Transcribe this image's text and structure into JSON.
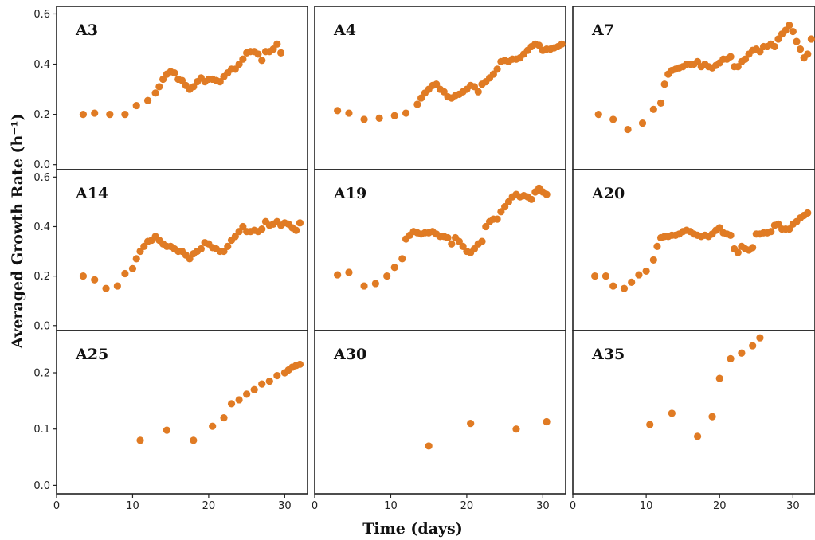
{
  "chart_data": {
    "type": "scatter",
    "xlabel": "Time (days)",
    "ylabel": "Averaged Growth Rate (h⁻¹)",
    "xlim": [
      0,
      33
    ],
    "x_ticks": [
      "0",
      "10",
      "20",
      "30"
    ],
    "color": "#e07b24",
    "rows": [
      {
        "ylim": [
          -0.02,
          0.63
        ],
        "y_ticks": [
          "0.0",
          "0.2",
          "0.4",
          "0.6"
        ]
      },
      {
        "ylim": [
          -0.02,
          0.63
        ],
        "y_ticks": [
          "0.0",
          "0.2",
          "0.4",
          "0.6"
        ]
      },
      {
        "ylim": [
          -0.015,
          0.275
        ],
        "y_ticks": [
          "0.0",
          "0.1",
          "0.2"
        ]
      }
    ],
    "panels": [
      {
        "label": "A3",
        "row": 0,
        "col": 0,
        "x": [
          3.5,
          5,
          7,
          9,
          10.5,
          12,
          13,
          13.5,
          14,
          14.5,
          15,
          15.5,
          16,
          16.5,
          17,
          17.5,
          18,
          18.5,
          19,
          19.5,
          20,
          20.5,
          21,
          21.5,
          22,
          22.5,
          23,
          23.5,
          24,
          24.5,
          25,
          25.5,
          26,
          26.5,
          27,
          27.5,
          28,
          28.5,
          29,
          29.5
        ],
        "y": [
          0.2,
          0.205,
          0.2,
          0.2,
          0.235,
          0.255,
          0.285,
          0.31,
          0.34,
          0.36,
          0.37,
          0.365,
          0.34,
          0.335,
          0.315,
          0.3,
          0.31,
          0.33,
          0.345,
          0.33,
          0.34,
          0.34,
          0.335,
          0.33,
          0.35,
          0.365,
          0.38,
          0.38,
          0.4,
          0.42,
          0.445,
          0.45,
          0.45,
          0.44,
          0.415,
          0.45,
          0.45,
          0.46,
          0.48,
          0.445
        ]
      },
      {
        "label": "A4",
        "row": 0,
        "col": 1,
        "x": [
          3,
          4.5,
          6.5,
          8.5,
          10.5,
          12,
          13.5,
          14,
          14.5,
          15,
          15.5,
          16,
          16.5,
          17,
          17.5,
          18,
          18.5,
          19,
          19.5,
          20,
          20.5,
          21,
          21.5,
          22,
          22.5,
          23,
          23.5,
          24,
          24.5,
          25,
          25.5,
          26,
          26.5,
          27,
          27.5,
          28,
          28.5,
          29,
          29.5,
          30,
          30.5,
          31,
          31.5,
          32,
          32.5
        ],
        "y": [
          0.215,
          0.205,
          0.18,
          0.185,
          0.195,
          0.205,
          0.24,
          0.265,
          0.285,
          0.3,
          0.315,
          0.32,
          0.3,
          0.29,
          0.27,
          0.265,
          0.275,
          0.28,
          0.29,
          0.3,
          0.315,
          0.31,
          0.29,
          0.32,
          0.33,
          0.345,
          0.36,
          0.38,
          0.41,
          0.415,
          0.41,
          0.42,
          0.42,
          0.425,
          0.44,
          0.455,
          0.47,
          0.48,
          0.475,
          0.455,
          0.46,
          0.46,
          0.465,
          0.47,
          0.48
        ]
      },
      {
        "label": "A7",
        "row": 0,
        "col": 2,
        "x": [
          3.5,
          5.5,
          7.5,
          9.5,
          11,
          12,
          12.5,
          13,
          13.5,
          14,
          14.5,
          15,
          15.5,
          16,
          16.5,
          17,
          17.5,
          18,
          18.5,
          19,
          19.5,
          20,
          20.5,
          21,
          21.5,
          22,
          22.5,
          23,
          23.5,
          24,
          24.5,
          25,
          25.5,
          26,
          26.5,
          27,
          27.5,
          28,
          28.5,
          29,
          29.5,
          30,
          30.5,
          31,
          31.5,
          32,
          32.5
        ],
        "y": [
          0.2,
          0.18,
          0.14,
          0.165,
          0.22,
          0.245,
          0.32,
          0.36,
          0.375,
          0.38,
          0.385,
          0.39,
          0.4,
          0.4,
          0.4,
          0.41,
          0.39,
          0.4,
          0.39,
          0.385,
          0.395,
          0.405,
          0.42,
          0.42,
          0.43,
          0.39,
          0.39,
          0.41,
          0.42,
          0.44,
          0.455,
          0.46,
          0.45,
          0.47,
          0.47,
          0.48,
          0.47,
          0.5,
          0.52,
          0.535,
          0.555,
          0.53,
          0.49,
          0.46,
          0.425,
          0.44,
          0.5
        ]
      },
      {
        "label": "A14",
        "row": 1,
        "col": 0,
        "x": [
          3.5,
          5,
          6.5,
          8,
          9,
          10,
          10.5,
          11,
          11.5,
          12,
          12.5,
          13,
          13.5,
          14,
          14.5,
          15,
          15.5,
          16,
          16.5,
          17,
          17.5,
          18,
          18.5,
          19,
          19.5,
          20,
          20.5,
          21,
          21.5,
          22,
          22.5,
          23,
          23.5,
          24,
          24.5,
          25,
          25.5,
          26,
          26.5,
          27,
          27.5,
          28,
          28.5,
          29,
          29.5,
          30,
          30.5,
          31,
          31.5,
          32
        ],
        "y": [
          0.2,
          0.185,
          0.15,
          0.16,
          0.21,
          0.23,
          0.27,
          0.3,
          0.32,
          0.34,
          0.345,
          0.36,
          0.345,
          0.33,
          0.32,
          0.32,
          0.31,
          0.3,
          0.3,
          0.285,
          0.27,
          0.29,
          0.3,
          0.31,
          0.335,
          0.33,
          0.315,
          0.31,
          0.3,
          0.3,
          0.32,
          0.345,
          0.36,
          0.38,
          0.4,
          0.38,
          0.38,
          0.385,
          0.38,
          0.39,
          0.42,
          0.405,
          0.41,
          0.42,
          0.405,
          0.415,
          0.41,
          0.395,
          0.385,
          0.415
        ]
      },
      {
        "label": "A19",
        "row": 1,
        "col": 1,
        "x": [
          3,
          4.5,
          6.5,
          8,
          9.5,
          10.5,
          11.5,
          12,
          12.5,
          13,
          13.5,
          14,
          14.5,
          15,
          15.5,
          16,
          16.5,
          17,
          17.5,
          18,
          18.5,
          19,
          19.5,
          20,
          20.5,
          21,
          21.5,
          22,
          22.5,
          23,
          23.5,
          24,
          24.5,
          25,
          25.5,
          26,
          26.5,
          27,
          27.5,
          28,
          28.5,
          29,
          29.5,
          30,
          30.5
        ],
        "y": [
          0.205,
          0.215,
          0.16,
          0.17,
          0.2,
          0.235,
          0.27,
          0.35,
          0.365,
          0.38,
          0.375,
          0.37,
          0.375,
          0.375,
          0.38,
          0.37,
          0.36,
          0.36,
          0.355,
          0.33,
          0.355,
          0.34,
          0.32,
          0.3,
          0.295,
          0.31,
          0.33,
          0.34,
          0.4,
          0.42,
          0.43,
          0.43,
          0.46,
          0.48,
          0.5,
          0.52,
          0.53,
          0.52,
          0.525,
          0.52,
          0.51,
          0.54,
          0.555,
          0.54,
          0.53
        ]
      },
      {
        "label": "A20",
        "row": 1,
        "col": 2,
        "x": [
          3,
          4.5,
          5.5,
          7,
          8,
          9,
          10,
          11,
          11.5,
          12,
          12.5,
          13,
          13.5,
          14,
          14.5,
          15,
          15.5,
          16,
          16.5,
          17,
          17.5,
          18,
          18.5,
          19,
          19.5,
          20,
          20.5,
          21,
          21.5,
          22,
          22.5,
          23,
          23.5,
          24,
          24.5,
          25,
          25.5,
          26,
          26.5,
          27,
          27.5,
          28,
          28.5,
          29,
          29.5,
          30,
          30.5,
          31,
          31.5,
          32
        ],
        "y": [
          0.2,
          0.2,
          0.16,
          0.15,
          0.175,
          0.205,
          0.22,
          0.265,
          0.32,
          0.355,
          0.36,
          0.36,
          0.365,
          0.365,
          0.37,
          0.38,
          0.385,
          0.38,
          0.37,
          0.365,
          0.36,
          0.365,
          0.36,
          0.37,
          0.385,
          0.395,
          0.375,
          0.37,
          0.365,
          0.31,
          0.295,
          0.32,
          0.31,
          0.305,
          0.315,
          0.37,
          0.37,
          0.375,
          0.375,
          0.38,
          0.405,
          0.41,
          0.39,
          0.39,
          0.39,
          0.41,
          0.42,
          0.435,
          0.445,
          0.455
        ]
      },
      {
        "label": "A25",
        "row": 2,
        "col": 0,
        "x": [
          11,
          14.5,
          18,
          20.5,
          22,
          23,
          24,
          25,
          26,
          27,
          28,
          29,
          30,
          30.5,
          31,
          31.5,
          32
        ],
        "y": [
          0.08,
          0.098,
          0.08,
          0.105,
          0.12,
          0.145,
          0.152,
          0.162,
          0.17,
          0.18,
          0.185,
          0.195,
          0.2,
          0.205,
          0.21,
          0.213,
          0.215
        ]
      },
      {
        "label": "A30",
        "row": 2,
        "col": 1,
        "x": [
          15,
          20.5,
          26.5,
          30.5
        ],
        "y": [
          0.07,
          0.11,
          0.1,
          0.113
        ]
      },
      {
        "label": "A35",
        "row": 2,
        "col": 2,
        "x": [
          10.5,
          13.5,
          17,
          19,
          20,
          21.5,
          23,
          24.5,
          25.5
        ],
        "y": [
          0.108,
          0.128,
          0.087,
          0.122,
          0.19,
          0.225,
          0.235,
          0.248,
          0.262
        ]
      }
    ]
  }
}
